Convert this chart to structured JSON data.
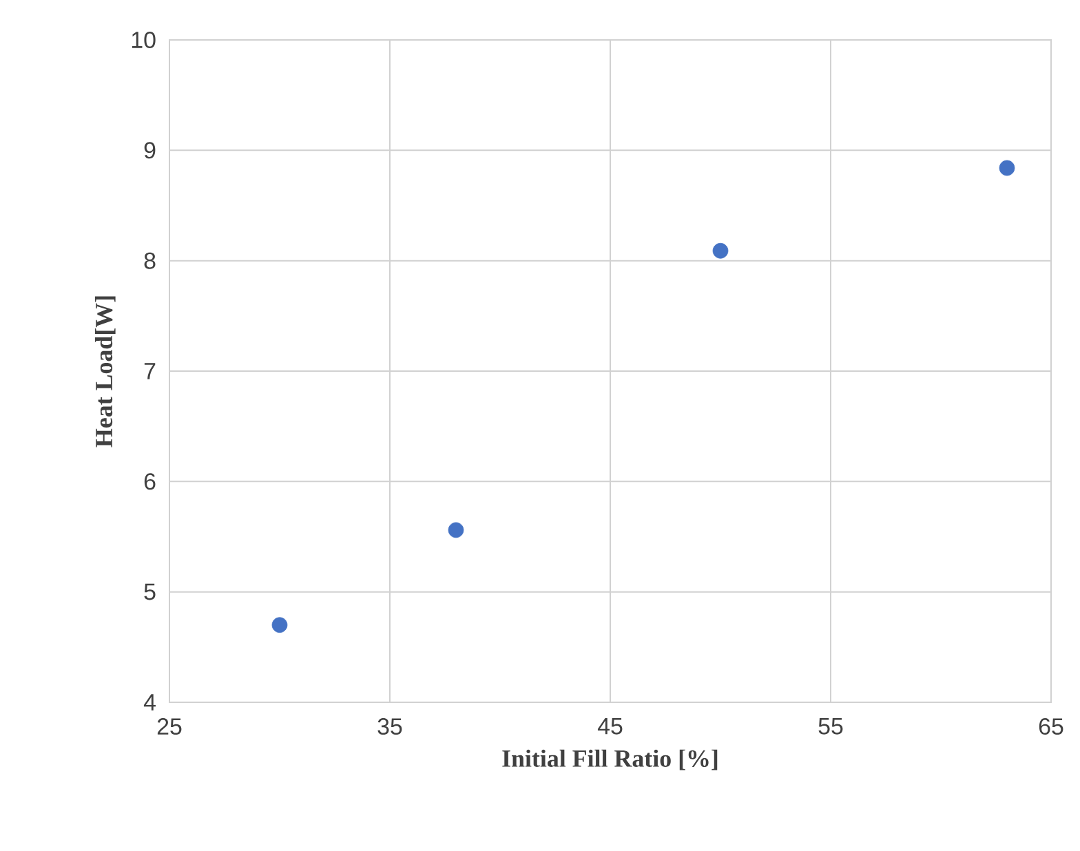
{
  "chart_data": {
    "type": "scatter",
    "xlabel": "Initial Fill Ratio [%]",
    "ylabel": "Heat Load[W]",
    "x": [
      30,
      38,
      50,
      63
    ],
    "series": [
      {
        "color": "#4472c4",
        "values": [
          4.7,
          5.56,
          8.09,
          8.84
        ]
      }
    ],
    "xlim": [
      25,
      65
    ],
    "xticks": [
      25,
      35,
      45,
      55,
      65
    ],
    "ylim": [
      4,
      10
    ],
    "yticks": [
      4,
      5,
      6,
      7,
      8,
      9,
      10
    ],
    "grid": true,
    "marker": "circle"
  }
}
